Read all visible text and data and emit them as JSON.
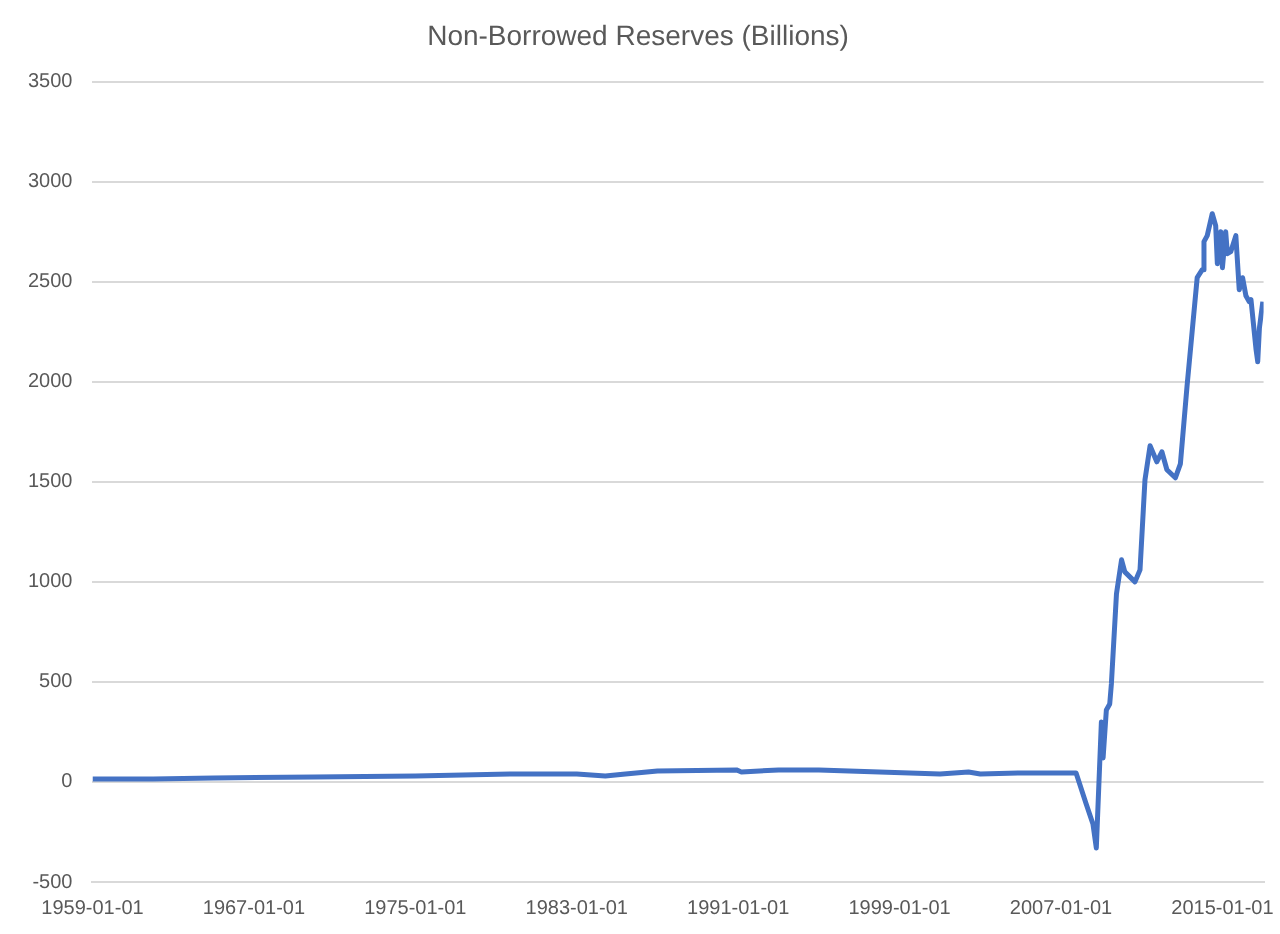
{
  "chart_data": {
    "type": "line",
    "title": "Non-Borrowed Reserves (Billions)",
    "x": [
      "1959-01",
      "1962-01",
      "1965-01",
      "1970-01",
      "1975-01",
      "1980-01",
      "1983-01",
      "1984-06",
      "1985-06",
      "1987-01",
      "1990-12",
      "1991-03",
      "1993-01",
      "1995-01",
      "1998-01",
      "2001-01",
      "2002-06",
      "2003-01",
      "2005-01",
      "2007-10",
      "2008-04",
      "2008-08",
      "2008-10",
      "2009-01",
      "2009-02",
      "2009-04",
      "2009-06",
      "2009-07",
      "2009-10",
      "2010-01",
      "2010-03",
      "2010-09",
      "2010-12",
      "2011-03",
      "2011-06",
      "2011-10",
      "2012-01",
      "2012-04",
      "2012-09",
      "2012-12",
      "2013-04",
      "2013-10",
      "2014-01",
      "2014-02",
      "2014-04",
      "2014-07",
      "2014-09",
      "2014-10",
      "2014-12",
      "2015-01",
      "2015-03",
      "2015-04",
      "2015-06",
      "2015-09",
      "2015-11",
      "2016-01",
      "2016-03",
      "2016-05",
      "2016-06",
      "2016-09",
      "2016-10",
      "2016-11",
      "2017-01"
    ],
    "series": [
      {
        "color": "#4472c4",
        "values": [
          15,
          15,
          20,
          25,
          30,
          40,
          40,
          30,
          40,
          55,
          60,
          50,
          60,
          60,
          50,
          40,
          50,
          40,
          45,
          45,
          -110,
          -210,
          -330,
          300,
          120,
          360,
          390,
          490,
          940,
          1110,
          1050,
          1000,
          1060,
          1510,
          1680,
          1600,
          1650,
          1560,
          1520,
          1590,
          1980,
          2520,
          2560,
          2700,
          2730,
          2840,
          2780,
          2590,
          2750,
          2570,
          2750,
          2640,
          2650,
          2730,
          2460,
          2520,
          2430,
          2400,
          2410,
          2160,
          2100,
          2270,
          2400
        ]
      }
    ],
    "xlim": [
      "1959-01-01",
      "2017-01-15"
    ],
    "xticks": [
      "1959-01-01",
      "1967-01-01",
      "1975-01-01",
      "1983-01-01",
      "1991-01-01",
      "1999-01-01",
      "2007-01-01",
      "2015-01-01"
    ],
    "ylim": [
      -500,
      3500
    ],
    "yticks": [
      -500,
      0,
      500,
      1000,
      1500,
      2000,
      2500,
      3000,
      3500
    ],
    "grid": "y",
    "legend": false,
    "marker": "none",
    "line_style": "solid"
  }
}
